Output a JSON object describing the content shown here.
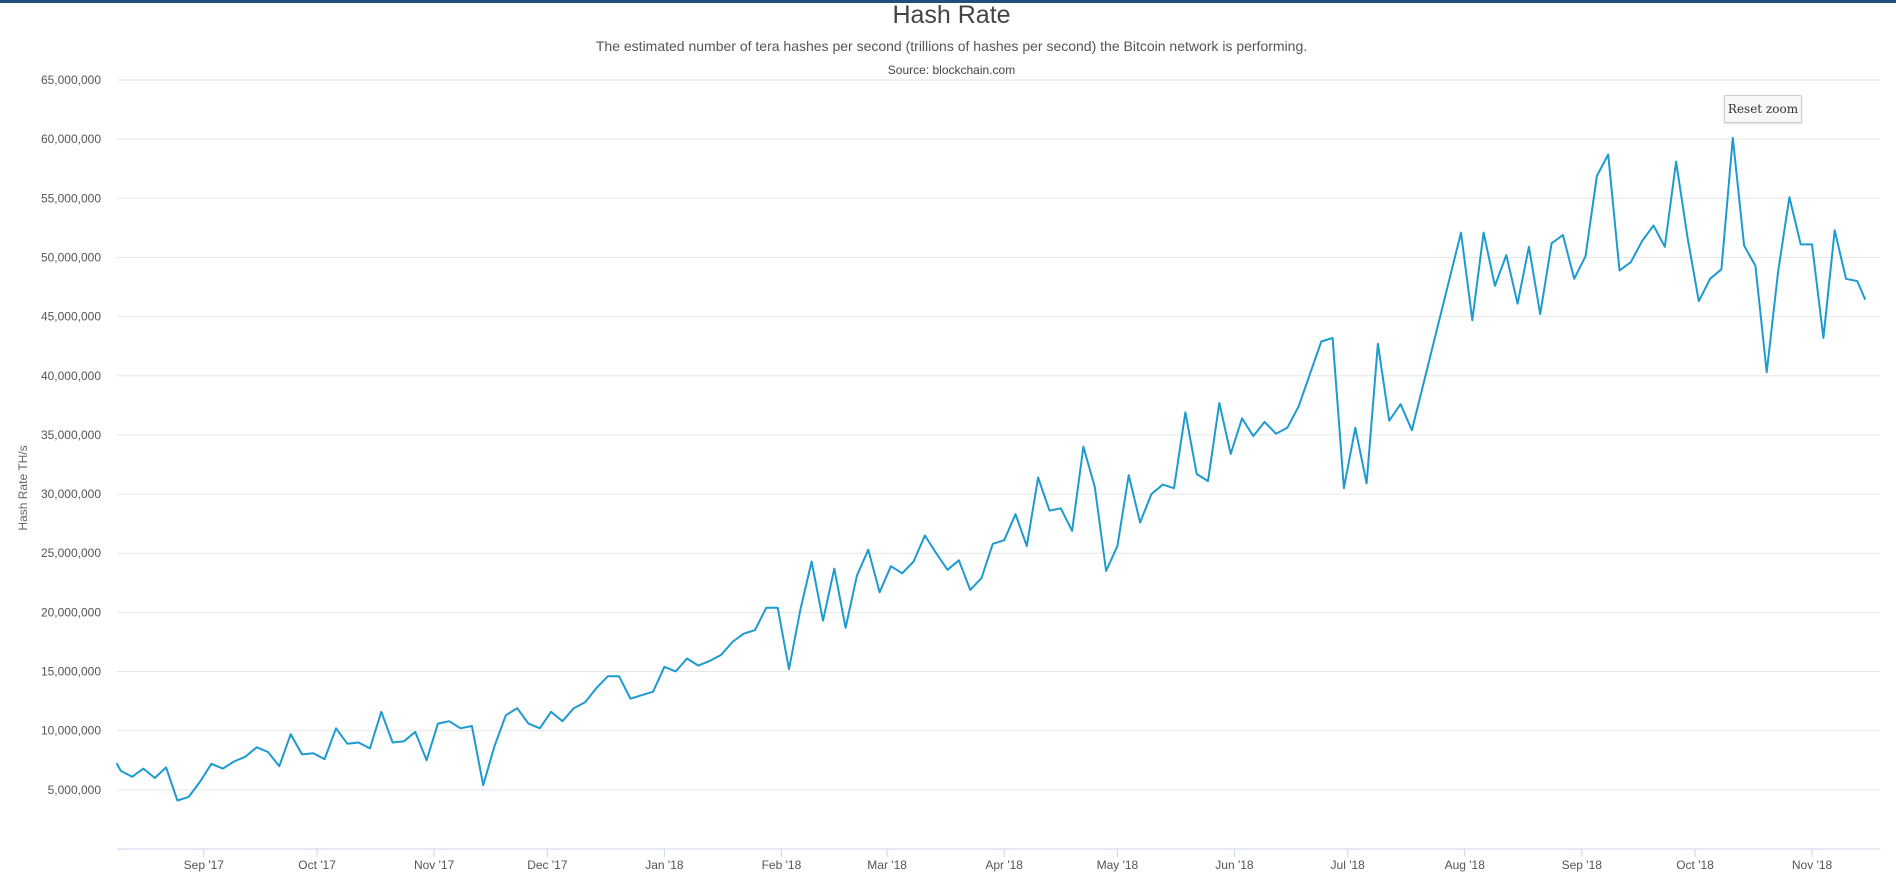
{
  "chart_data": {
    "type": "line",
    "title": "Hash Rate",
    "subtitle": "The estimated number of tera hashes per second (trillions of hashes per second) the Bitcoin network is performing.",
    "source": "Source: blockchain.com",
    "ylabel": "Hash Rate TH/s",
    "xlabel": "",
    "ylim": [
      0,
      65000000
    ],
    "xlim": [
      "2017-08-09",
      "2018-11-19"
    ],
    "grid": true,
    "legend": "none",
    "line_color": "#1d9bd1",
    "y_ticks": [
      {
        "value": 5000000,
        "label": "5,000,000"
      },
      {
        "value": 10000000,
        "label": "10,000,000"
      },
      {
        "value": 15000000,
        "label": "15,000,000"
      },
      {
        "value": 20000000,
        "label": "20,000,000"
      },
      {
        "value": 25000000,
        "label": "25,000,000"
      },
      {
        "value": 30000000,
        "label": "30,000,000"
      },
      {
        "value": 35000000,
        "label": "35,000,000"
      },
      {
        "value": 40000000,
        "label": "40,000,000"
      },
      {
        "value": 45000000,
        "label": "45,000,000"
      },
      {
        "value": 50000000,
        "label": "50,000,000"
      },
      {
        "value": 55000000,
        "label": "55,000,000"
      },
      {
        "value": 60000000,
        "label": "60,000,000"
      },
      {
        "value": 65000000,
        "label": "65,000,000"
      }
    ],
    "x_ticks": [
      {
        "date": "2017-09-01",
        "label": "Sep '17"
      },
      {
        "date": "2017-10-01",
        "label": "Oct '17"
      },
      {
        "date": "2017-11-01",
        "label": "Nov '17"
      },
      {
        "date": "2017-12-01",
        "label": "Dec '17"
      },
      {
        "date": "2018-01-01",
        "label": "Jan '18"
      },
      {
        "date": "2018-02-01",
        "label": "Feb '18"
      },
      {
        "date": "2018-03-01",
        "label": "Mar '18"
      },
      {
        "date": "2018-04-01",
        "label": "Apr '18"
      },
      {
        "date": "2018-05-01",
        "label": "May '18"
      },
      {
        "date": "2018-06-01",
        "label": "Jun '18"
      },
      {
        "date": "2018-07-01",
        "label": "Jul '18"
      },
      {
        "date": "2018-08-01",
        "label": "Aug '18"
      },
      {
        "date": "2018-09-01",
        "label": "Sep '18"
      },
      {
        "date": "2018-10-01",
        "label": "Oct '18"
      },
      {
        "date": "2018-11-01",
        "label": "Nov '18"
      }
    ],
    "series": [
      {
        "points": [
          [
            "2017-08-09",
            7200000
          ],
          [
            "2017-08-10",
            6600000
          ],
          [
            "2017-08-13",
            6100000
          ],
          [
            "2017-08-16",
            6800000
          ],
          [
            "2017-08-19",
            6000000
          ],
          [
            "2017-08-22",
            6900000
          ],
          [
            "2017-08-25",
            4100000
          ],
          [
            "2017-08-28",
            4400000
          ],
          [
            "2017-08-31",
            5700000
          ],
          [
            "2017-09-03",
            7200000
          ],
          [
            "2017-09-06",
            6800000
          ],
          [
            "2017-09-09",
            7400000
          ],
          [
            "2017-09-12",
            7800000
          ],
          [
            "2017-09-15",
            8600000
          ],
          [
            "2017-09-18",
            8200000
          ],
          [
            "2017-09-21",
            7000000
          ],
          [
            "2017-09-24",
            9700000
          ],
          [
            "2017-09-27",
            8000000
          ],
          [
            "2017-09-30",
            8100000
          ],
          [
            "2017-10-03",
            7600000
          ],
          [
            "2017-10-06",
            10200000
          ],
          [
            "2017-10-09",
            8900000
          ],
          [
            "2017-10-12",
            9000000
          ],
          [
            "2017-10-15",
            8500000
          ],
          [
            "2017-10-18",
            11600000
          ],
          [
            "2017-10-21",
            9000000
          ],
          [
            "2017-10-24",
            9100000
          ],
          [
            "2017-10-27",
            9900000
          ],
          [
            "2017-10-30",
            7500000
          ],
          [
            "2017-11-02",
            10600000
          ],
          [
            "2017-11-05",
            10800000
          ],
          [
            "2017-11-08",
            10200000
          ],
          [
            "2017-11-11",
            10400000
          ],
          [
            "2017-11-14",
            5400000
          ],
          [
            "2017-11-17",
            8700000
          ],
          [
            "2017-11-20",
            11300000
          ],
          [
            "2017-11-23",
            11900000
          ],
          [
            "2017-11-26",
            10600000
          ],
          [
            "2017-11-29",
            10200000
          ],
          [
            "2017-12-02",
            11600000
          ],
          [
            "2017-12-05",
            10800000
          ],
          [
            "2017-12-08",
            11900000
          ],
          [
            "2017-12-11",
            12400000
          ],
          [
            "2017-12-14",
            13600000
          ],
          [
            "2017-12-17",
            14600000
          ],
          [
            "2017-12-20",
            14600000
          ],
          [
            "2017-12-23",
            12700000
          ],
          [
            "2017-12-26",
            13000000
          ],
          [
            "2017-12-29",
            13300000
          ],
          [
            "2018-01-01",
            15400000
          ],
          [
            "2018-01-04",
            15000000
          ],
          [
            "2018-01-07",
            16100000
          ],
          [
            "2018-01-10",
            15500000
          ],
          [
            "2018-01-13",
            15900000
          ],
          [
            "2018-01-16",
            16400000
          ],
          [
            "2018-01-19",
            17500000
          ],
          [
            "2018-01-22",
            18200000
          ],
          [
            "2018-01-25",
            18500000
          ],
          [
            "2018-01-28",
            20400000
          ],
          [
            "2018-01-31",
            20400000
          ],
          [
            "2018-02-03",
            15200000
          ],
          [
            "2018-02-06",
            20200000
          ],
          [
            "2018-02-09",
            24300000
          ],
          [
            "2018-02-12",
            19300000
          ],
          [
            "2018-02-15",
            23700000
          ],
          [
            "2018-02-18",
            18700000
          ],
          [
            "2018-02-21",
            23100000
          ],
          [
            "2018-02-24",
            25300000
          ],
          [
            "2018-02-27",
            21700000
          ],
          [
            "2018-03-02",
            23900000
          ],
          [
            "2018-03-05",
            23300000
          ],
          [
            "2018-03-08",
            24300000
          ],
          [
            "2018-03-11",
            26500000
          ],
          [
            "2018-03-14",
            25000000
          ],
          [
            "2018-03-17",
            23600000
          ],
          [
            "2018-03-20",
            24400000
          ],
          [
            "2018-03-23",
            21900000
          ],
          [
            "2018-03-26",
            22900000
          ],
          [
            "2018-03-29",
            25800000
          ],
          [
            "2018-04-01",
            26100000
          ],
          [
            "2018-04-04",
            28300000
          ],
          [
            "2018-04-07",
            25600000
          ],
          [
            "2018-04-10",
            31400000
          ],
          [
            "2018-04-13",
            28600000
          ],
          [
            "2018-04-16",
            28800000
          ],
          [
            "2018-04-19",
            26900000
          ],
          [
            "2018-04-22",
            34000000
          ],
          [
            "2018-04-25",
            30600000
          ],
          [
            "2018-04-28",
            23500000
          ],
          [
            "2018-05-01",
            25600000
          ],
          [
            "2018-05-04",
            31600000
          ],
          [
            "2018-05-07",
            27600000
          ],
          [
            "2018-05-10",
            30000000
          ],
          [
            "2018-05-13",
            30800000
          ],
          [
            "2018-05-16",
            30500000
          ],
          [
            "2018-05-19",
            36900000
          ],
          [
            "2018-05-22",
            31700000
          ],
          [
            "2018-05-25",
            31100000
          ],
          [
            "2018-05-28",
            37700000
          ],
          [
            "2018-05-31",
            33400000
          ],
          [
            "2018-06-03",
            36400000
          ],
          [
            "2018-06-06",
            34900000
          ],
          [
            "2018-06-09",
            36100000
          ],
          [
            "2018-06-12",
            35100000
          ],
          [
            "2018-06-15",
            35600000
          ],
          [
            "2018-06-18",
            37400000
          ],
          [
            "2018-06-24",
            42900000
          ],
          [
            "2018-06-27",
            43200000
          ],
          [
            "2018-06-30",
            30500000
          ],
          [
            "2018-07-03",
            35600000
          ],
          [
            "2018-07-06",
            30900000
          ],
          [
            "2018-07-09",
            42700000
          ],
          [
            "2018-07-12",
            36200000
          ],
          [
            "2018-07-15",
            37600000
          ],
          [
            "2018-07-18",
            35400000
          ],
          [
            "2018-07-31",
            52100000
          ],
          [
            "2018-08-03",
            44700000
          ],
          [
            "2018-08-06",
            52100000
          ],
          [
            "2018-08-09",
            47600000
          ],
          [
            "2018-08-12",
            50200000
          ],
          [
            "2018-08-15",
            46100000
          ],
          [
            "2018-08-18",
            50900000
          ],
          [
            "2018-08-21",
            45200000
          ],
          [
            "2018-08-24",
            51200000
          ],
          [
            "2018-08-27",
            51900000
          ],
          [
            "2018-08-30",
            48200000
          ],
          [
            "2018-09-02",
            50100000
          ],
          [
            "2018-09-05",
            56900000
          ],
          [
            "2018-09-08",
            58700000
          ],
          [
            "2018-09-11",
            48900000
          ],
          [
            "2018-09-14",
            49600000
          ],
          [
            "2018-09-17",
            51400000
          ],
          [
            "2018-09-20",
            52700000
          ],
          [
            "2018-09-23",
            50900000
          ],
          [
            "2018-09-26",
            58100000
          ],
          [
            "2018-09-29",
            51700000
          ],
          [
            "2018-10-02",
            46300000
          ],
          [
            "2018-10-05",
            48200000
          ],
          [
            "2018-10-08",
            49000000
          ],
          [
            "2018-10-11",
            60100000
          ],
          [
            "2018-10-14",
            51000000
          ],
          [
            "2018-10-17",
            49300000
          ],
          [
            "2018-10-20",
            40300000
          ],
          [
            "2018-10-23",
            48800000
          ],
          [
            "2018-10-26",
            55100000
          ],
          [
            "2018-10-29",
            51100000
          ],
          [
            "2018-11-01",
            51100000
          ],
          [
            "2018-11-04",
            43200000
          ],
          [
            "2018-11-07",
            52300000
          ],
          [
            "2018-11-10",
            48200000
          ],
          [
            "2018-11-13",
            48000000
          ],
          [
            "2018-11-15",
            46500000
          ]
        ]
      }
    ]
  },
  "controls": {
    "reset_zoom_label": "Reset zoom"
  }
}
